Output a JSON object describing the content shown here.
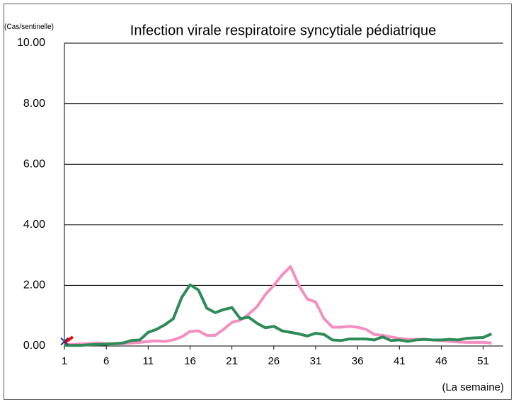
{
  "chart_data": {
    "type": "line",
    "title": "Infection virale respiratoire syncytiale pédiatrique",
    "y_label": "(Cas/sentinelle)",
    "x_label": "(La semaine)",
    "x": [
      1,
      2,
      3,
      4,
      5,
      6,
      7,
      8,
      9,
      10,
      11,
      12,
      13,
      14,
      15,
      16,
      17,
      18,
      19,
      20,
      21,
      22,
      23,
      24,
      25,
      26,
      27,
      28,
      29,
      30,
      31,
      32,
      33,
      34,
      35,
      36,
      37,
      38,
      39,
      40,
      41,
      42,
      43,
      44,
      45,
      46,
      47,
      48,
      49,
      50,
      51,
      52
    ],
    "xlim": [
      1,
      53.4
    ],
    "xticks": [
      1,
      6,
      11,
      16,
      21,
      26,
      31,
      36,
      41,
      46,
      51
    ],
    "ylim": [
      0,
      10
    ],
    "yticks": [
      {
        "value": 0,
        "label": "0.00"
      },
      {
        "value": 2,
        "label": "2.00"
      },
      {
        "value": 4,
        "label": "4.00"
      },
      {
        "value": 6,
        "label": "6.00"
      },
      {
        "value": 8,
        "label": "8.00"
      },
      {
        "value": 10,
        "label": "10.00"
      }
    ],
    "grid": true,
    "series": [
      {
        "color": "#f48fc0",
        "values": [
          0.05,
          0.05,
          0.07,
          0.08,
          0.1,
          0.08,
          0.07,
          0.08,
          0.1,
          0.12,
          0.15,
          0.17,
          0.15,
          0.2,
          0.3,
          0.48,
          0.5,
          0.35,
          0.35,
          0.55,
          0.78,
          0.85,
          1.05,
          1.3,
          1.7,
          2.0,
          2.35,
          2.62,
          2.0,
          1.55,
          1.45,
          0.9,
          0.62,
          0.62,
          0.65,
          0.62,
          0.55,
          0.38,
          0.35,
          0.3,
          0.25,
          0.22,
          0.22,
          0.22,
          0.2,
          0.18,
          0.15,
          0.13,
          0.12,
          0.12,
          0.12,
          0.1
        ]
      },
      {
        "color": "#2e8b57",
        "values": [
          0.02,
          0.02,
          0.02,
          0.04,
          0.05,
          0.06,
          0.08,
          0.1,
          0.18,
          0.2,
          0.45,
          0.55,
          0.7,
          0.9,
          1.6,
          2.02,
          1.85,
          1.25,
          1.1,
          1.2,
          1.27,
          0.9,
          0.95,
          0.75,
          0.6,
          0.65,
          0.5,
          0.45,
          0.4,
          0.33,
          0.42,
          0.38,
          0.2,
          0.18,
          0.23,
          0.23,
          0.23,
          0.2,
          0.3,
          0.18,
          0.2,
          0.15,
          0.2,
          0.22,
          0.2,
          0.2,
          0.22,
          0.2,
          0.25,
          0.27,
          0.28,
          0.4
        ]
      },
      {
        "color": "#ff0000",
        "values": [
          0.1,
          0.3,
          null,
          null,
          null,
          null,
          null,
          null,
          null,
          null,
          null,
          null,
          null,
          null,
          null,
          null,
          null,
          null,
          null,
          null,
          null,
          null,
          null,
          null,
          null,
          null,
          null,
          null,
          null,
          null,
          null,
          null,
          null,
          null,
          null,
          null,
          null,
          null,
          null,
          null,
          null,
          null,
          null,
          null,
          null,
          null,
          null,
          null,
          null,
          null,
          null,
          null
        ]
      },
      {
        "color": "#1f3a93",
        "marker": "x",
        "values": [
          0.15,
          null,
          null,
          null,
          null,
          null,
          null,
          null,
          null,
          null,
          null,
          null,
          null,
          null,
          null,
          null,
          null,
          null,
          null,
          null,
          null,
          null,
          null,
          null,
          null,
          null,
          null,
          null,
          null,
          null,
          null,
          null,
          null,
          null,
          null,
          null,
          null,
          null,
          null,
          null,
          null,
          null,
          null,
          null,
          null,
          null,
          null,
          null,
          null,
          null,
          null,
          null
        ]
      }
    ]
  }
}
